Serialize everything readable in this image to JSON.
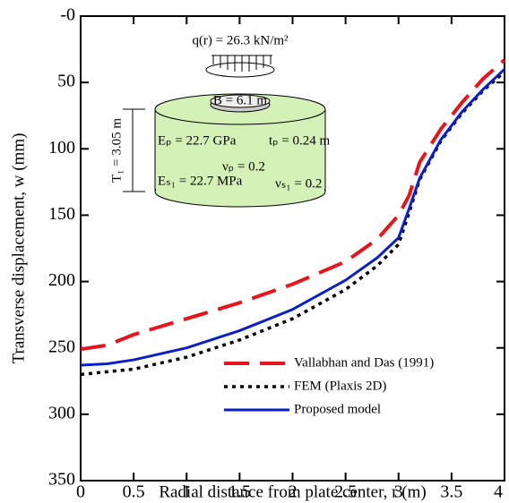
{
  "chart_data": {
    "type": "line",
    "xlabel": "Radial distance from plate center, r (m)",
    "ylabel": "Transverse displacement, w (mm)",
    "x": [
      0,
      0.25,
      0.5,
      1,
      1.5,
      2,
      2.5,
      2.8,
      3,
      3.1,
      3.2,
      3.4,
      3.6,
      3.8,
      4
    ],
    "series": [
      {
        "name": "Vallabhan and Das (1991)",
        "color": "#e8141c",
        "dash": "dashed",
        "values": [
          251,
          248,
          240,
          228,
          216,
          202,
          185,
          168,
          150,
          135,
          110,
          85,
          65,
          47,
          33
        ]
      },
      {
        "name": "FEM (Plaxis 2D)",
        "color": "#000000",
        "dash": "dotted",
        "values": [
          270,
          268,
          266,
          257,
          244,
          228,
          206,
          188,
          172,
          148,
          123,
          94,
          73,
          56,
          42
        ]
      },
      {
        "name": "Proposed model",
        "color": "#0a1fc8",
        "dash": "solid",
        "values": [
          263,
          262,
          259,
          250,
          237,
          221,
          199,
          182,
          167,
          145,
          122,
          93,
          72,
          55,
          40
        ]
      }
    ],
    "xlim": [
      0,
      4
    ],
    "xticks": [
      0,
      0.5,
      1,
      1.5,
      2,
      2.5,
      3,
      3.5,
      4
    ],
    "ylim": [
      0,
      350
    ],
    "y_inverted": true,
    "yticks": [
      {
        "value": 0,
        "label": "-0"
      },
      50,
      100,
      150,
      200,
      250,
      300,
      350
    ],
    "legend": "lower right",
    "annotations": [
      "q(r) = 26.3 kN/m²",
      "B = 6.1 m",
      "T₁ = 3.05 m",
      "Eₚ = 22.7 GPa",
      "tₚ = 0.24 m",
      "νₚ = 0.2",
      "Eₛ₁ = 22.7 MPa",
      "νₛ₁ = 0.2"
    ]
  }
}
